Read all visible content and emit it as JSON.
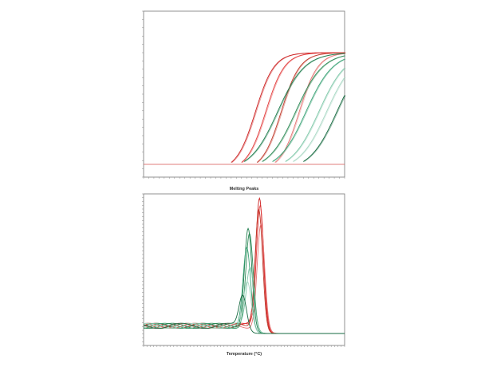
{
  "charts": {
    "amplification": {
      "type": "line",
      "threshold_color": "#d9534f",
      "cycle_start": 1,
      "cycle_end": 40
    },
    "melt": {
      "type": "line",
      "title": "Melting Peaks",
      "xlabel": "Temperature (°C)",
      "temp_start": 65,
      "temp_end": 95
    }
  },
  "colors": {
    "red": [
      "#cc1f1f",
      "#e23b3b",
      "#c0392b",
      "#e57373",
      "#b71c1c"
    ],
    "green": [
      "#1e7d4d",
      "#2e8b57",
      "#3aa276",
      "#7fc8a9",
      "#a8d8c4",
      "#166a40"
    ]
  },
  "chart_data": [
    {
      "type": "line",
      "title": "",
      "xlabel": "",
      "ylabel": "",
      "x": "cycle",
      "series": [
        {
          "color": "red",
          "ct": 18.5
        },
        {
          "color": "red",
          "ct": 20.5
        },
        {
          "color": "red",
          "ct": 23.5
        },
        {
          "color": "red",
          "ct": 27
        },
        {
          "color": "green",
          "ct": 21
        },
        {
          "color": "green",
          "ct": 24.5
        },
        {
          "color": "green",
          "ct": 26.5
        },
        {
          "color": "green",
          "ct": 29
        },
        {
          "color": "green",
          "ct": 30.5
        },
        {
          "color": "green",
          "ct": 32.5
        }
      ]
    },
    {
      "type": "line",
      "title": "Melting Peaks",
      "xlabel": "Temperature (°C)",
      "ylabel": "",
      "x": "temperature",
      "series": [
        {
          "color": "red",
          "peak_temp": 82.3,
          "peak": 1.0
        },
        {
          "color": "red",
          "peak_temp": 82.4,
          "peak": 0.96
        },
        {
          "color": "red",
          "peak_temp": 82.2,
          "peak": 0.93
        },
        {
          "color": "red",
          "peak_temp": 82.5,
          "peak": 0.8
        },
        {
          "color": "green",
          "peak_temp": 80.6,
          "peak": 0.78
        },
        {
          "color": "green",
          "peak_temp": 80.8,
          "peak": 0.72
        },
        {
          "color": "green",
          "peak_temp": 80.4,
          "peak": 0.6
        },
        {
          "color": "green",
          "peak_temp": 80.9,
          "peak": 0.45
        },
        {
          "color": "green",
          "peak_temp": 80.5,
          "peak": 0.35
        },
        {
          "color": "green",
          "peak_temp": 79.8,
          "peak": 0.25
        }
      ]
    }
  ]
}
